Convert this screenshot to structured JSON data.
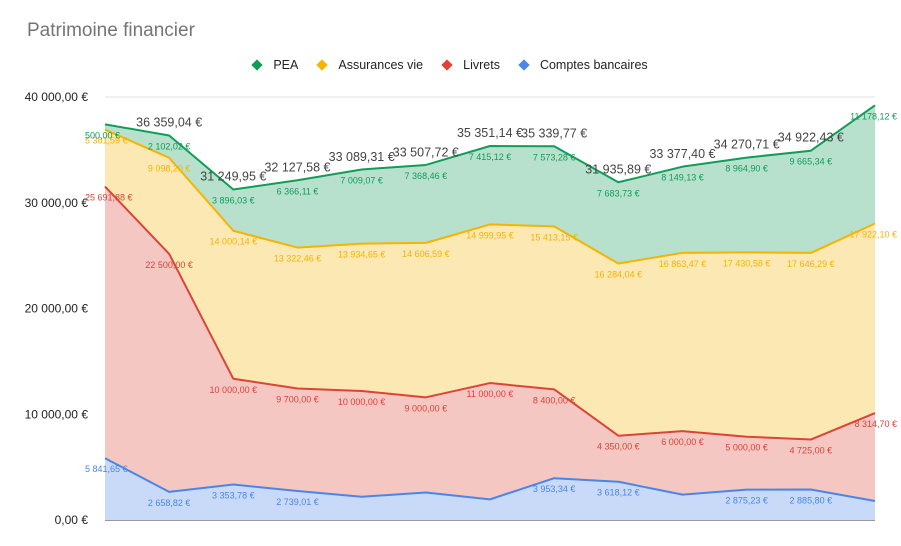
{
  "chart_data": {
    "type": "area",
    "stacked": true,
    "title": "Patrimoine financier",
    "ylim": [
      0,
      40000
    ],
    "y_ticks": [
      {
        "value": 0,
        "label": "0,00 €"
      },
      {
        "value": 10000,
        "label": "10 000,00 €"
      },
      {
        "value": 20000,
        "label": "20 000,00 €"
      },
      {
        "value": 30000,
        "label": "30 000,00 €"
      },
      {
        "value": 40000,
        "label": "40 000,00 €"
      }
    ],
    "legend_position": "top",
    "series": [
      {
        "name": "Comptes bancaires",
        "color": "#4a86e8",
        "fill": "#c9daf8",
        "values": [
          5841.65,
          2658.82,
          3353.78,
          2739.01,
          2200,
          2600,
          1950,
          3953.34,
          3618.12,
          2400,
          2875.23,
          2885.8,
          1800
        ],
        "labels": [
          "5 841,65 €",
          "2 658,82 €",
          "3 353,78 €",
          "2 739,01 €",
          null,
          null,
          null,
          "3 953,34 €",
          "3 618,12 €",
          null,
          "2 875,23 €",
          "2 885,80 €",
          null
        ]
      },
      {
        "name": "Livrets",
        "color": "#db4437",
        "fill": "#f4c7c3",
        "values": [
          25691.88,
          22500,
          10000,
          9700,
          10000,
          9000,
          11000,
          8400,
          4350,
          6000,
          5000,
          4725,
          8314.7
        ],
        "labels": [
          "25 691,88 €",
          "22 500,00 €",
          "10 000,00 €",
          "9 700,00 €",
          "10 000,00 €",
          "9 000,00 €",
          "11 000,00 €",
          "8 400,00 €",
          "4 350,00 €",
          "6 000,00 €",
          "5 000,00 €",
          "4 725,00 €",
          "8 314,70 €"
        ]
      },
      {
        "name": "Assurances vie",
        "color": "#f4b400",
        "fill": "#fce8b2",
        "values": [
          5381.59,
          9098.2,
          14000.14,
          13322.46,
          13934.65,
          14606.59,
          14999.95,
          15413.15,
          16284.04,
          16863.47,
          17430.58,
          17646.29,
          17922.1
        ],
        "labels": [
          "5 381,59 €",
          "9 098,20 €",
          "14 000,14 €",
          "13 322,46 €",
          "13 934,65 €",
          "14 606,59 €",
          "14 999,95 €",
          "15 413,15 €",
          "16 284,04 €",
          "16 863,47 €",
          "17 430,58 €",
          "17 646,29 €",
          "17 922,10 €"
        ]
      },
      {
        "name": "PEA",
        "color": "#0f9d58",
        "fill": "#b7e1cd",
        "values": [
          500,
          2102.02,
          3896.03,
          6366.11,
          7009.07,
          7368.46,
          7415.12,
          7573.28,
          7683.73,
          8149.13,
          8964.9,
          9665.34,
          11178.12
        ],
        "labels": [
          "500,00 €",
          "2 102,02 €",
          "3 896,03 €",
          "6 366,11 €",
          "7 009,07 €",
          "7 368,46 €",
          "7 415,12 €",
          "7 573,28 €",
          "7 683,73 €",
          "8 149,13 €",
          "8 964,90 €",
          "9 665,34 €",
          "11 178,12 €"
        ]
      }
    ],
    "totals": [
      null,
      36359.04,
      31249.95,
      32127.58,
      33089.31,
      33507.72,
      35351.14,
      35339.77,
      31935.89,
      33377.4,
      34270.71,
      34922.43,
      null
    ],
    "total_labels": [
      null,
      "36 359,04 €",
      "31 249,95 €",
      "32 127,58 €",
      "33 089,31 €",
      "33 507,72 €",
      "35 351,14 €",
      "35 339,77 €",
      "31 935,89 €",
      "33 377,40 €",
      "34 270,71 €",
      "34 922,43 €",
      null
    ]
  },
  "legend": {
    "items": [
      {
        "name": "PEA",
        "color": "#0f9d58"
      },
      {
        "name": "Assurances vie",
        "color": "#f4b400"
      },
      {
        "name": "Livrets",
        "color": "#db4437"
      },
      {
        "name": "Comptes bancaires",
        "color": "#4a86e8"
      }
    ]
  }
}
